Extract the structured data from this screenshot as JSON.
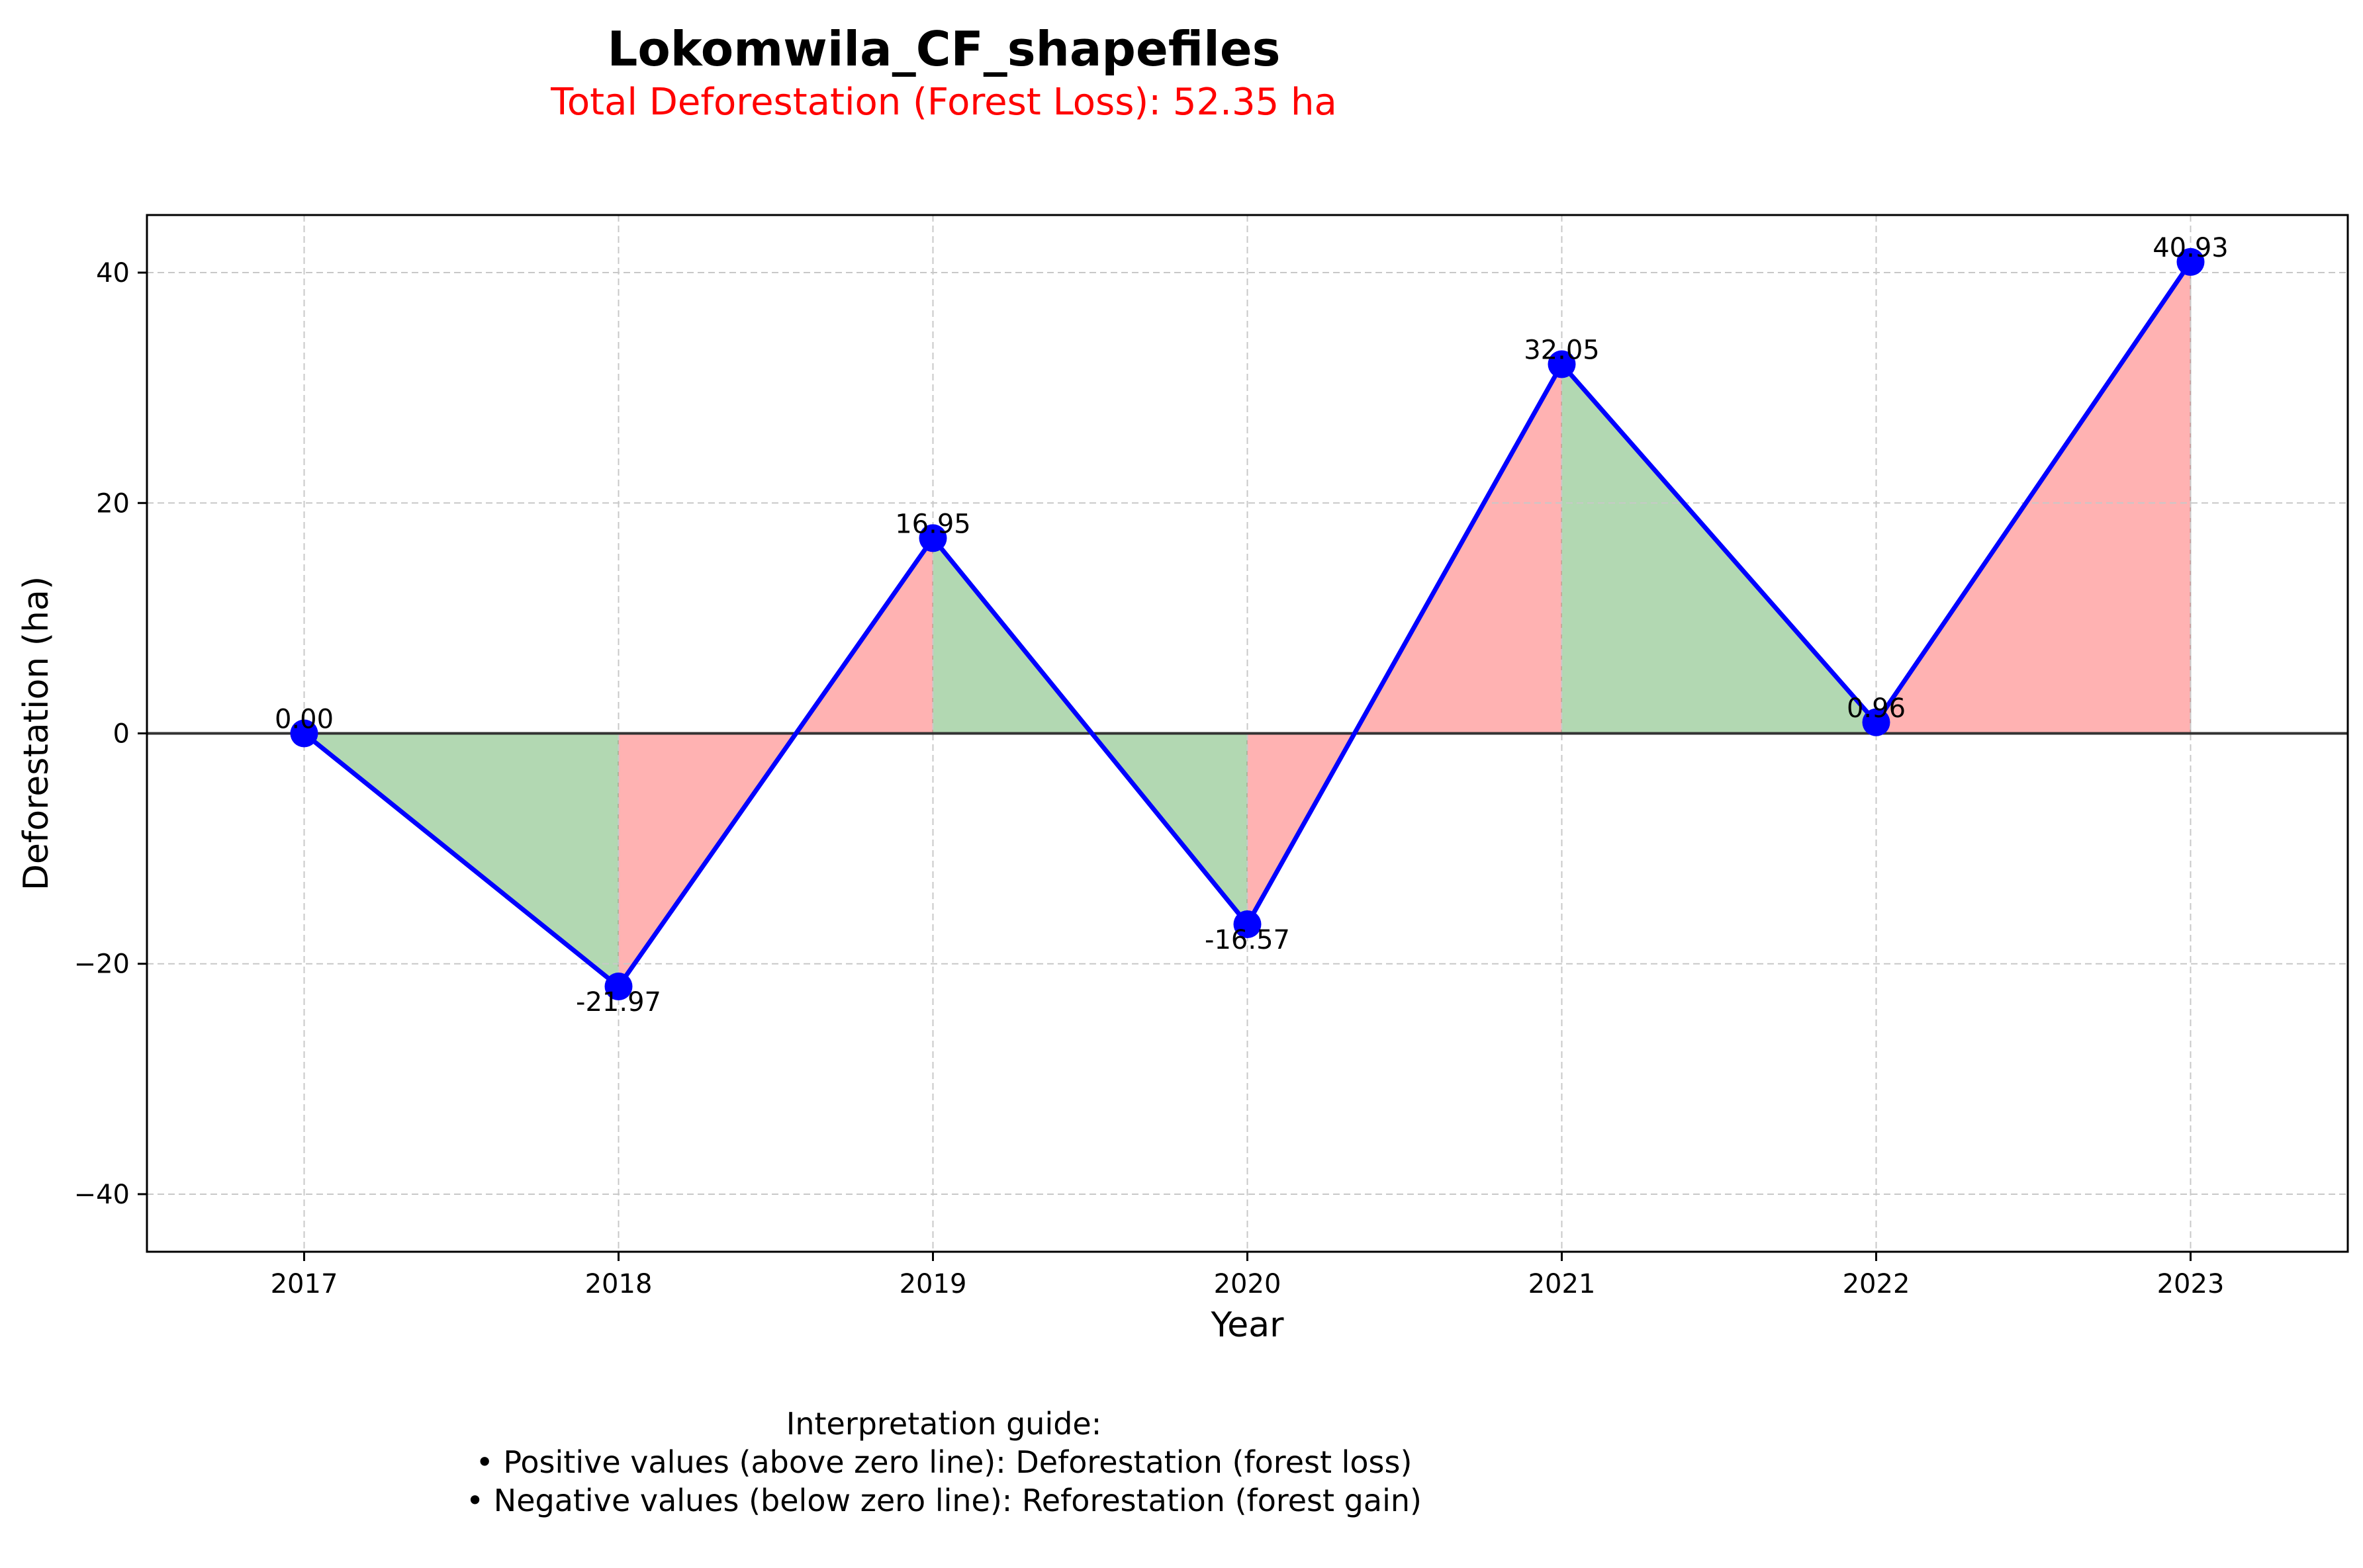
{
  "title": "Lokomwila_CF_shapefiles",
  "subtitle": "Total Deforestation (Forest Loss): 52.35 ha",
  "guide": {
    "heading": "Interpretation guide:",
    "line1": "• Positive values (above zero line): Deforestation (forest loss)",
    "line2": "• Negative values (below zero line): Reforestation (forest gain)"
  },
  "colors": {
    "line": "#0000ff",
    "marker": "#0000ff",
    "loss_fill": "#ffb2b2",
    "gain_fill": "#b2d8b2",
    "zero_line": "#333333",
    "grid": "#c8c8c8",
    "subtitle": "#ff0000"
  },
  "chart_data": {
    "type": "line",
    "title": "Lokomwila_CF_shapefiles",
    "subtitle": "Total Deforestation (Forest Loss): 52.35 ha",
    "xlabel": "Year",
    "ylabel": "Deforestation (ha)",
    "categories": [
      "2017",
      "2018",
      "2019",
      "2020",
      "2021",
      "2022",
      "2023"
    ],
    "values": [
      0.0,
      -21.97,
      16.95,
      -16.57,
      32.05,
      0.96,
      40.93
    ],
    "data_labels": [
      "0.00",
      "-21.97",
      "16.95",
      "-16.57",
      "32.05",
      "0.96",
      "40.93"
    ],
    "yticks": [
      -40,
      -20,
      0,
      20,
      40
    ],
    "ylim": [
      -45,
      45
    ],
    "xlim": [
      2016.5,
      2023.5
    ],
    "grid": true,
    "zero_line": true,
    "fill": "between each year: red when the change from the prior year increases (forest loss), green when it decreases (gain)"
  }
}
